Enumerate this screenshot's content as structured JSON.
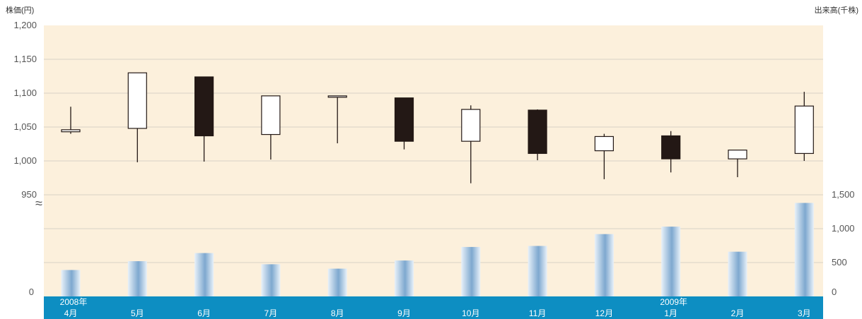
{
  "chart_data": {
    "type": "candlestick+bar",
    "left_axis_title": "株価(円)",
    "right_axis_title": "出来高(千株)",
    "price_ticks": [
      "1,200",
      "1,150",
      "1,100",
      "1,050",
      "1,000",
      "950"
    ],
    "price_tick_values": [
      1200,
      1150,
      1100,
      1050,
      1000,
      950
    ],
    "price_ylim": [
      950,
      1200
    ],
    "volume_left_ticks": [
      "0"
    ],
    "volume_right_ticks": [
      "1,500",
      "1,000",
      "500",
      "0"
    ],
    "volume_tick_values": [
      1500,
      1000,
      500,
      0
    ],
    "volume_ylim": [
      0,
      1500
    ],
    "break_symbol": "≈",
    "months": [
      {
        "year": "2008年",
        "label": "4月",
        "open": 1043,
        "close": 1046,
        "high": 1080,
        "low": 1040,
        "volume": 390
      },
      {
        "year": "",
        "label": "5月",
        "open": 1048,
        "close": 1130,
        "high": 1130,
        "low": 998,
        "volume": 520
      },
      {
        "year": "",
        "label": "6月",
        "open": 1124,
        "close": 1037,
        "high": 1124,
        "low": 999,
        "volume": 640
      },
      {
        "year": "",
        "label": "7月",
        "open": 1039,
        "close": 1096,
        "high": 1096,
        "low": 1002,
        "volume": 475
      },
      {
        "year": "",
        "label": "8月",
        "open": 1094,
        "close": 1096,
        "high": 1096,
        "low": 1026,
        "volume": 410
      },
      {
        "year": "",
        "label": "9月",
        "open": 1093,
        "close": 1029,
        "high": 1093,
        "low": 1017,
        "volume": 530
      },
      {
        "year": "",
        "label": "10月",
        "open": 1029,
        "close": 1076,
        "high": 1082,
        "low": 967,
        "volume": 730
      },
      {
        "year": "",
        "label": "11月",
        "open": 1075,
        "close": 1011,
        "high": 1076,
        "low": 1001,
        "volume": 745
      },
      {
        "year": "",
        "label": "12月",
        "open": 1015,
        "close": 1036,
        "high": 1040,
        "low": 973,
        "volume": 920
      },
      {
        "year": "2009年",
        "label": "1月",
        "open": 1037,
        "close": 1003,
        "high": 1044,
        "low": 983,
        "volume": 1030
      },
      {
        "year": "",
        "label": "2月",
        "open": 1003,
        "close": 1016,
        "high": 1016,
        "low": 976,
        "volume": 660
      },
      {
        "year": "",
        "label": "3月",
        "open": 1011,
        "close": 1081,
        "high": 1102,
        "low": 1000,
        "volume": 1380
      }
    ]
  },
  "colors": {
    "plot_bg": "#fcf0dc",
    "grid": "#d8d2c6",
    "axis_band": "#0d8ec2",
    "up_body": "#ffffff",
    "down_body": "#231815",
    "wick": "#231815",
    "bar_light": "#e8f1f9",
    "bar_dark": "#7ea8cf"
  }
}
